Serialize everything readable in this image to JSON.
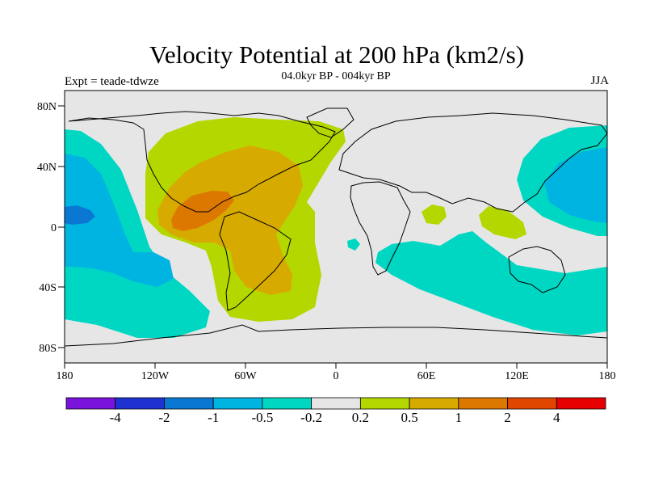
{
  "title": "Velocity Potential at 200 hPa (km2/s)",
  "subtitle": "04.0kyr BP - 004kyr BP",
  "left_string": "Expt = teade-tdwze",
  "right_string": "JJA",
  "axes": {
    "lat_labels": [
      "80N",
      "40N",
      "0",
      "40S",
      "80S"
    ],
    "lon_labels": [
      "180",
      "120W",
      "60W",
      "0",
      "60E",
      "120E",
      "180"
    ]
  },
  "colorbar": {
    "labels": [
      "-4",
      "-2",
      "-1",
      "-0.5",
      "-0.2",
      "0.2",
      "0.5",
      "1",
      "2",
      "4"
    ],
    "colors": [
      "#7a14dc",
      "#1e32d2",
      "#0a78d2",
      "#00b4e1",
      "#00d7c3",
      "#e6e6e6",
      "#b4d700",
      "#d7aa00",
      "#dc7800",
      "#e14600",
      "#e60000"
    ]
  },
  "fills": {
    "neutral": "#e6e6e6",
    "blue_weak": "#00d7c3",
    "blue_mid": "#00b4e1",
    "blue_strong": "#0a78d2",
    "pos_weak": "#b4d700",
    "pos_mid": "#d7aa00",
    "pos_strong": "#dc7800",
    "pos_strongest": "#e14600"
  }
}
